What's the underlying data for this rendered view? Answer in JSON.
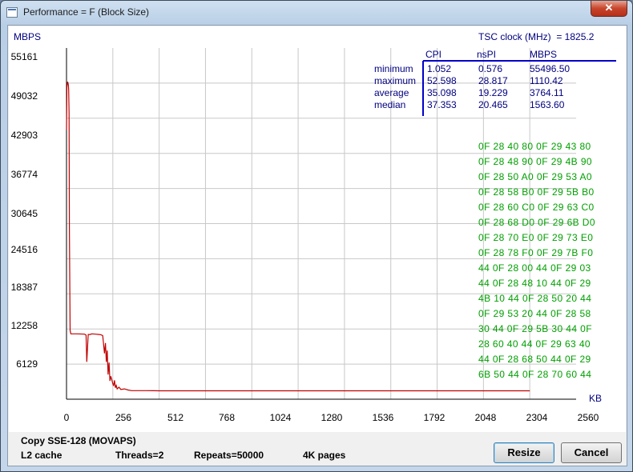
{
  "window": {
    "title": "Performance = F (Block Size)",
    "close_glyph": "✕"
  },
  "chart_data": {
    "type": "line",
    "ylabel": "MBPS",
    "xlabel": "KB",
    "x_ticks": [
      "0",
      "256",
      "512",
      "768",
      "1024",
      "1280",
      "1536",
      "1792",
      "2048",
      "2304",
      "2560"
    ],
    "y_ticks": [
      "55161",
      "49032",
      "42903",
      "36774",
      "30645",
      "24516",
      "18387",
      "12258",
      "6129"
    ],
    "x_range": [
      0,
      2816
    ],
    "y_range": [
      0,
      61290
    ],
    "series": [
      {
        "color": "#c00000",
        "x": [
          0,
          2,
          4,
          6,
          8,
          10,
          12,
          14,
          16,
          20,
          24,
          60,
          100,
          108,
          112,
          120,
          130,
          140,
          160,
          180,
          190,
          200,
          210,
          215,
          220,
          225,
          230,
          235,
          240,
          245,
          250,
          255,
          260,
          265,
          270,
          275,
          280,
          290,
          300,
          320,
          340,
          360,
          400,
          440,
          480,
          512,
          600,
          800,
          1000,
          1200,
          1400,
          1600,
          1800,
          2000,
          2200,
          2400,
          2560
        ],
        "y": [
          47000,
          54500,
          55000,
          55400,
          55200,
          54900,
          54000,
          50000,
          30000,
          12000,
          11400,
          11400,
          11350,
          11200,
          6500,
          11300,
          11300,
          11400,
          11350,
          11300,
          11250,
          11100,
          8000,
          9800,
          6500,
          8500,
          4300,
          6400,
          3200,
          4000,
          3400,
          2800,
          2300,
          3300,
          2000,
          2400,
          1800,
          2100,
          1700,
          1800,
          1600,
          1500,
          1500,
          1500,
          1480,
          1470,
          1460,
          1460,
          1460,
          1460,
          1460,
          1460,
          1460,
          1460,
          1460,
          1460,
          1460
        ]
      }
    ],
    "grid": true
  },
  "stats": {
    "clock_label": "TSC clock (MHz)  = 1825.2",
    "columns": [
      "CPI",
      "nsPI",
      "MBPS"
    ],
    "rows": [
      {
        "label": "minimum",
        "cpi": "1.052",
        "nspi": "0.576",
        "mbps": "55496.50"
      },
      {
        "label": "maximum",
        "cpi": "52.598",
        "nspi": "28.817",
        "mbps": "1110.42"
      },
      {
        "label": "average",
        "cpi": "35.098",
        "nspi": "19.229",
        "mbps": "3764.11"
      },
      {
        "label": "median",
        "cpi": "37.353",
        "nspi": "20.465",
        "mbps": "1563.60"
      }
    ]
  },
  "hex_dump": [
    "0F 28 40 80 0F 29 43 80",
    "0F 28 48 90 0F 29 4B 90",
    "0F 28 50 A0 0F 29 53 A0",
    "0F 28 58 B0 0F 29 5B B0",
    "0F 28 60 C0 0F 29 63 C0",
    "0F 28 68 D0 0F 29 6B D0",
    "0F 28 70 E0 0F 29 73 E0",
    "0F 28 78 F0 0F 29 7B F0",
    "44 0F 28 00 44 0F 29 03",
    "44 0F 28 48 10 44 0F 29",
    "4B 10 44 0F 28 50 20 44",
    "0F 29 53 20 44 0F 28 58",
    "30 44 0F 29 5B 30 44 0F",
    "28 60 40 44 0F 29 63 40",
    "44 0F 28 68 50 44 0F 29",
    "6B 50 44 0F 28 70 60 44"
  ],
  "status": {
    "method": "Copy SSE-128 (MOVAPS)",
    "cache": "L2 cache",
    "threads": "Threads=2",
    "repeats": "Repeats=50000",
    "pages": "4K pages"
  },
  "buttons": {
    "resize": "Resize",
    "cancel": "Cancel"
  }
}
